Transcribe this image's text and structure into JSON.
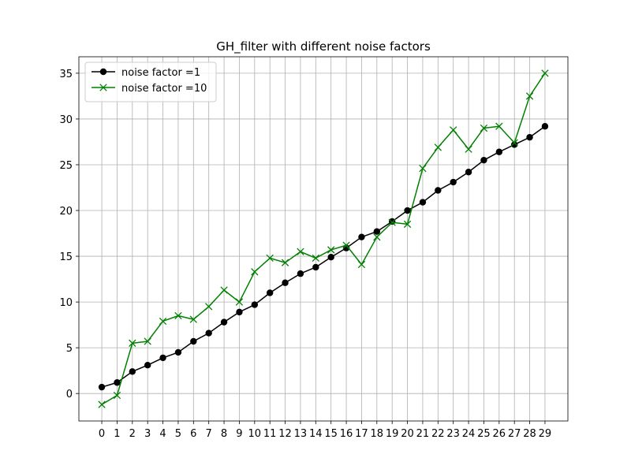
{
  "chart_data": {
    "type": "line",
    "title": "GH_filter with different noise factors",
    "xlabel": "",
    "ylabel": "",
    "x": [
      0,
      1,
      2,
      3,
      4,
      5,
      6,
      7,
      8,
      9,
      10,
      11,
      12,
      13,
      14,
      15,
      16,
      17,
      18,
      19,
      20,
      21,
      22,
      23,
      24,
      25,
      26,
      27,
      28,
      29
    ],
    "xlim": [
      -1.5,
      30.5
    ],
    "ylim": [
      -3.0,
      36.8
    ],
    "xticks": [
      "0",
      "1",
      "2",
      "3",
      "4",
      "5",
      "6",
      "7",
      "8",
      "9",
      "10",
      "11",
      "12",
      "13",
      "14",
      "15",
      "16",
      "17",
      "18",
      "19",
      "20",
      "21",
      "22",
      "23",
      "24",
      "25",
      "26",
      "27",
      "28",
      "29"
    ],
    "yticks": [
      0,
      5,
      10,
      15,
      20,
      25,
      30,
      35
    ],
    "grid": true,
    "legend_position": "top-left",
    "series": [
      {
        "name": "noise factor =1",
        "color": "#000000",
        "marker": "circle",
        "values": [
          0.7,
          1.2,
          2.4,
          3.1,
          3.9,
          4.5,
          5.7,
          6.6,
          7.8,
          8.9,
          9.7,
          11.0,
          12.1,
          13.1,
          13.8,
          14.9,
          15.9,
          17.1,
          17.7,
          18.8,
          20.0,
          20.9,
          22.2,
          23.1,
          24.2,
          25.5,
          26.4,
          27.2,
          28.0,
          29.2
        ]
      },
      {
        "name": "noise factor =10",
        "color": "#008000",
        "marker": "x",
        "values": [
          -1.2,
          -0.2,
          5.5,
          5.7,
          7.9,
          8.5,
          8.1,
          9.5,
          11.3,
          10.0,
          13.3,
          14.8,
          14.3,
          15.5,
          14.8,
          15.7,
          16.2,
          14.1,
          17.1,
          18.7,
          18.5,
          24.6,
          26.9,
          28.8,
          26.7,
          29.0,
          29.2,
          27.4,
          32.5,
          35.0
        ]
      }
    ]
  }
}
